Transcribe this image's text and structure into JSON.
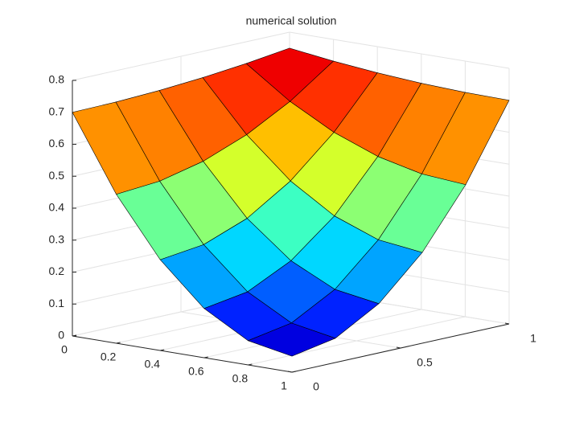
{
  "chart_data": {
    "type": "surface",
    "title": "numerical solution",
    "x": [
      0,
      0.2,
      0.4,
      0.6,
      0.8,
      1
    ],
    "y": [
      0,
      0.2,
      0.4,
      0.6,
      0.8,
      1
    ],
    "z": [
      [
        0.7,
        0.702,
        0.708,
        0.718,
        0.732,
        0.75
      ],
      [
        0.466,
        0.477,
        0.509,
        0.562,
        0.636,
        0.732
      ],
      [
        0.284,
        0.301,
        0.353,
        0.44,
        0.562,
        0.718
      ],
      [
        0.154,
        0.176,
        0.243,
        0.353,
        0.509,
        0.708
      ],
      [
        0.076,
        0.101,
        0.176,
        0.301,
        0.477,
        0.702
      ],
      [
        0.05,
        0.076,
        0.154,
        0.284,
        0.466,
        0.7
      ]
    ],
    "xlim": [
      0,
      1
    ],
    "xticks": [
      0,
      0.2,
      0.4,
      0.6,
      0.8,
      1
    ],
    "ylim": [
      0,
      1
    ],
    "yticks": [
      0,
      0.5,
      1
    ],
    "zlim": [
      0,
      0.8
    ],
    "zticks": [
      0,
      0.1,
      0.2,
      0.3,
      0.4,
      0.5,
      0.6,
      0.7,
      0.8
    ],
    "colormap": "jet",
    "grid": true
  }
}
